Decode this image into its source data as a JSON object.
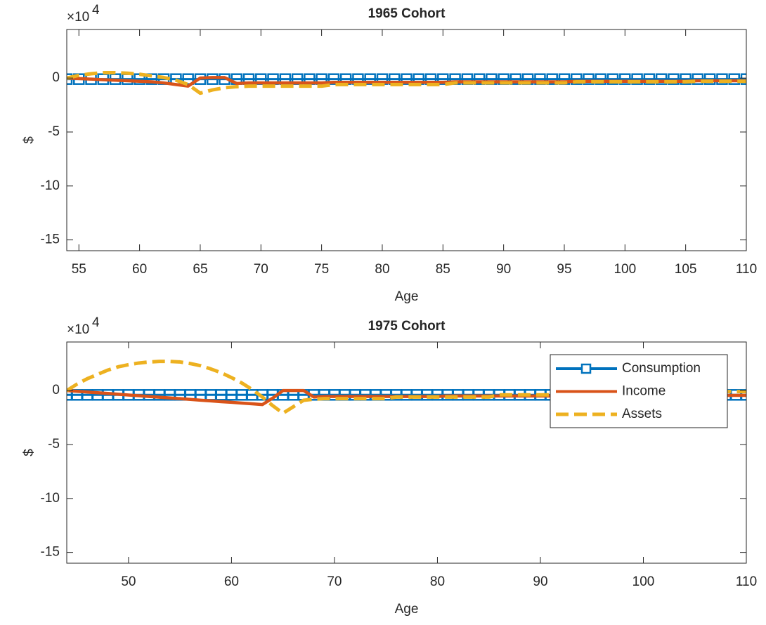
{
  "chart_data": [
    {
      "type": "line",
      "title": "1965 Cohort",
      "xlabel": "Age",
      "ylabel": "$",
      "y_multiplier": {
        "base": "×10",
        "exponent": "4"
      },
      "xlim": [
        54,
        110
      ],
      "ylim": [
        -16,
        4.5
      ],
      "xticks": [
        55,
        60,
        65,
        70,
        75,
        80,
        85,
        90,
        95,
        100,
        105,
        110
      ],
      "yticks": [
        -15,
        -10,
        -5,
        0
      ],
      "legend": false,
      "x": [
        54,
        55,
        56,
        57,
        58,
        59,
        60,
        61,
        62,
        63,
        64,
        65,
        66,
        67,
        68,
        69,
        70,
        71,
        72,
        73,
        74,
        75,
        76,
        77,
        78,
        79,
        80,
        81,
        82,
        83,
        84,
        85,
        86,
        87,
        88,
        89,
        90,
        91,
        92,
        93,
        94,
        95,
        96,
        97,
        98,
        99,
        100,
        101,
        102,
        103,
        104,
        105,
        106,
        107,
        108,
        109,
        110
      ],
      "series": [
        {
          "name": "Consumption",
          "color": "#0072BD",
          "marker": "square",
          "line_style": "solid",
          "values": [
            -0.1,
            -0.1,
            -0.1,
            -0.1,
            -0.1,
            -0.1,
            -0.1,
            -0.1,
            -0.1,
            -0.1,
            -0.1,
            -0.1,
            -0.1,
            -0.1,
            -0.1,
            -0.1,
            -0.1,
            -0.1,
            -0.1,
            -0.1,
            -0.1,
            -0.1,
            -0.1,
            -0.1,
            -0.1,
            -0.1,
            -0.1,
            -0.1,
            -0.1,
            -0.1,
            -0.1,
            -0.1,
            -0.1,
            -0.1,
            -0.1,
            -0.1,
            -0.1,
            -0.1,
            -0.1,
            -0.1,
            -0.1,
            -0.1,
            -0.1,
            -0.1,
            -0.1,
            -0.1,
            -0.1,
            -0.1,
            -0.1,
            -0.1,
            -0.1,
            -0.1,
            -0.1,
            -0.1,
            -0.1,
            -0.1,
            -0.1
          ]
        },
        {
          "name": "Income",
          "color": "#D95319",
          "line_style": "solid",
          "values": [
            0,
            -0.05,
            -0.1,
            -0.15,
            -0.2,
            -0.25,
            -0.3,
            -0.35,
            -0.45,
            -0.6,
            -0.75,
            0,
            0.05,
            0.05,
            -0.5,
            -0.45,
            -0.45,
            -0.45,
            -0.45,
            -0.45,
            -0.45,
            -0.45,
            -0.4,
            -0.4,
            -0.4,
            -0.4,
            -0.4,
            -0.4,
            -0.4,
            -0.4,
            -0.4,
            -0.4,
            -0.35,
            -0.35,
            -0.35,
            -0.35,
            -0.35,
            -0.35,
            -0.35,
            -0.35,
            -0.35,
            -0.35,
            -0.3,
            -0.3,
            -0.3,
            -0.3,
            -0.3,
            -0.3,
            -0.3,
            -0.3,
            -0.3,
            -0.3,
            -0.25,
            -0.25,
            -0.25,
            -0.25,
            -0.25
          ]
        },
        {
          "name": "Assets",
          "color": "#EDB120",
          "line_style": "dashed",
          "values": [
            0,
            0.25,
            0.4,
            0.5,
            0.5,
            0.45,
            0.35,
            0.2,
            0.05,
            -0.2,
            -0.6,
            -1.4,
            -1.1,
            -0.9,
            -0.8,
            -0.75,
            -0.75,
            -0.75,
            -0.75,
            -0.75,
            -0.75,
            -0.75,
            -0.6,
            -0.6,
            -0.6,
            -0.6,
            -0.6,
            -0.6,
            -0.6,
            -0.6,
            -0.6,
            -0.6,
            -0.45,
            -0.45,
            -0.45,
            -0.45,
            -0.45,
            -0.45,
            -0.45,
            -0.45,
            -0.45,
            -0.45,
            -0.35,
            -0.35,
            -0.35,
            -0.35,
            -0.35,
            -0.35,
            -0.35,
            -0.35,
            -0.35,
            -0.35,
            -0.3,
            -0.3,
            -0.3,
            -0.3,
            -0.3
          ]
        }
      ]
    },
    {
      "type": "line",
      "title": "1975 Cohort",
      "xlabel": "Age",
      "ylabel": "$",
      "y_multiplier": {
        "base": "×10",
        "exponent": "4"
      },
      "xlim": [
        44,
        110
      ],
      "ylim": [
        -16,
        4.5
      ],
      "xticks": [
        50,
        60,
        70,
        80,
        90,
        100,
        110
      ],
      "yticks": [
        -15,
        -10,
        -5,
        0
      ],
      "legend": "northeast",
      "x": [
        44,
        45,
        46,
        47,
        48,
        49,
        50,
        51,
        52,
        53,
        54,
        55,
        56,
        57,
        58,
        59,
        60,
        61,
        62,
        63,
        64,
        65,
        66,
        67,
        68,
        69,
        70,
        71,
        72,
        73,
        74,
        75,
        76,
        77,
        78,
        79,
        80,
        81,
        82,
        83,
        84,
        85,
        86,
        87,
        88,
        89,
        90,
        91,
        92,
        93,
        94,
        95,
        96,
        97,
        98,
        99,
        100,
        101,
        102,
        103,
        104,
        105,
        106,
        107,
        108,
        109,
        110
      ],
      "series": [
        {
          "name": "Consumption",
          "color": "#0072BD",
          "marker": "square",
          "line_style": "solid",
          "values": [
            -0.4,
            -0.4,
            -0.4,
            -0.4,
            -0.4,
            -0.4,
            -0.4,
            -0.4,
            -0.4,
            -0.4,
            -0.4,
            -0.4,
            -0.4,
            -0.4,
            -0.4,
            -0.4,
            -0.4,
            -0.4,
            -0.4,
            -0.4,
            -0.4,
            -0.4,
            -0.4,
            -0.4,
            -0.4,
            -0.4,
            -0.4,
            -0.4,
            -0.4,
            -0.4,
            -0.4,
            -0.4,
            -0.4,
            -0.4,
            -0.4,
            -0.4,
            -0.4,
            -0.4,
            -0.4,
            -0.4,
            -0.4,
            -0.4,
            -0.4,
            -0.4,
            -0.4,
            -0.4,
            -0.4,
            -0.4,
            -0.4,
            -0.4,
            -0.4,
            -0.4,
            -0.4,
            -0.4,
            -0.4,
            -0.4,
            -0.4,
            -0.4,
            -0.4,
            -0.4,
            -0.4,
            -0.4,
            -0.4,
            -0.4,
            -0.4,
            -0.4,
            -0.4
          ]
        },
        {
          "name": "Income",
          "color": "#D95319",
          "line_style": "solid",
          "values": [
            0,
            -0.07,
            -0.14,
            -0.2,
            -0.27,
            -0.34,
            -0.41,
            -0.48,
            -0.55,
            -0.62,
            -0.68,
            -0.75,
            -0.82,
            -0.89,
            -0.96,
            -1.03,
            -1.09,
            -1.16,
            -1.23,
            -1.3,
            -0.7,
            0,
            0,
            0,
            -0.6,
            -0.55,
            -0.55,
            -0.55,
            -0.55,
            -0.55,
            -0.55,
            -0.55,
            -0.55,
            -0.55,
            -0.55,
            -0.55,
            -0.55,
            -0.5,
            -0.5,
            -0.5,
            -0.5,
            -0.5,
            -0.5,
            -0.5,
            -0.5,
            -0.5,
            -0.5,
            -0.5,
            -0.5,
            -0.5,
            -0.5,
            -0.5,
            -0.45,
            -0.45,
            -0.45,
            -0.45,
            -0.45,
            -0.45,
            -0.45,
            -0.45,
            -0.45,
            -0.45,
            -0.45,
            -0.45,
            -0.45,
            -0.45,
            -0.45
          ]
        },
        {
          "name": "Assets",
          "color": "#EDB120",
          "line_style": "dashed",
          "values": [
            0,
            0.6,
            1.1,
            1.5,
            1.9,
            2.2,
            2.4,
            2.55,
            2.65,
            2.7,
            2.7,
            2.65,
            2.5,
            2.3,
            2.0,
            1.65,
            1.2,
            0.7,
            0.1,
            -0.6,
            -1.4,
            -2.1,
            -1.5,
            -0.9,
            -0.8,
            -0.75,
            -0.75,
            -0.75,
            -0.75,
            -0.75,
            -0.75,
            -0.75,
            -0.6,
            -0.6,
            -0.6,
            -0.6,
            -0.6,
            -0.6,
            -0.6,
            -0.6,
            -0.6,
            -0.6,
            -0.4,
            -0.4,
            -0.4,
            -0.4,
            -0.4,
            -0.4,
            -0.4,
            -0.4,
            -0.4,
            -0.4,
            -0.2,
            -0.2,
            -0.2,
            -0.2,
            -0.2,
            -0.2,
            -0.2,
            -0.2,
            -0.2,
            -0.2,
            -0.1,
            -0.1,
            -0.1,
            -0.1,
            -0.1
          ]
        }
      ]
    }
  ]
}
